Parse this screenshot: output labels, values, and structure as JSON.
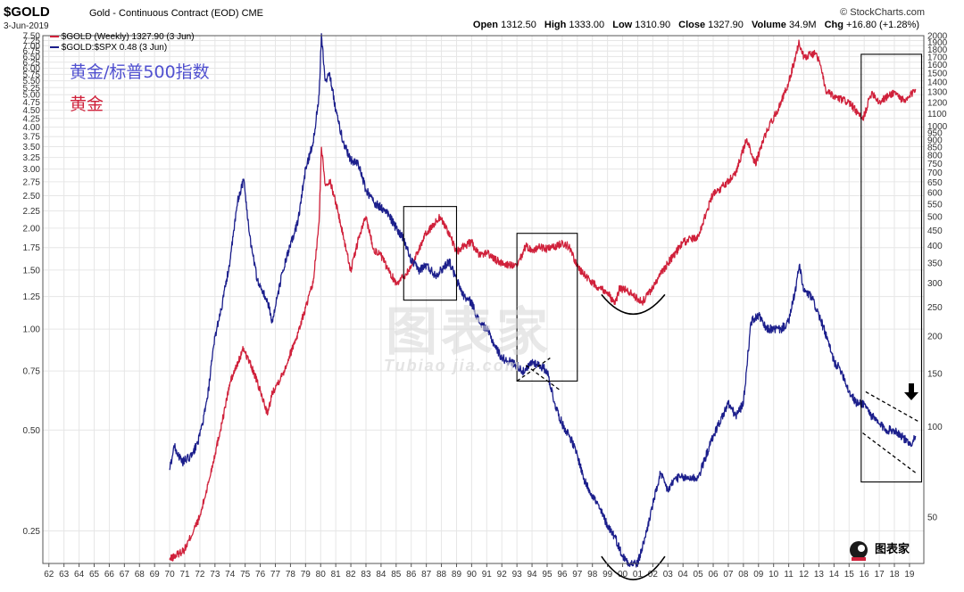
{
  "header": {
    "symbol": "$GOLD",
    "description": "Gold - Continuous Contract (EOD)",
    "exchange": "CME",
    "date": "3-Jun-2019",
    "credit": "© StockCharts.com",
    "ohlc": [
      {
        "label": "Open",
        "value": "1312.50"
      },
      {
        "label": "High",
        "value": "1333.00"
      },
      {
        "label": "Low",
        "value": "1310.90"
      },
      {
        "label": "Close",
        "value": "1327.90"
      },
      {
        "label": "Volume",
        "value": "34.9M"
      },
      {
        "label": "Chg",
        "value": "+16.80 (+1.28%)"
      }
    ]
  },
  "legend": {
    "gold": "$GOLD (Weekly) 1327.90 (3 Jun)",
    "ratio": "$GOLD:$SPX 0.48 (3 Jun)"
  },
  "annotations": {
    "ratio_label": "黄金/标普500指数",
    "gold_label": "黄金"
  },
  "watermark": {
    "cn": "图表家",
    "en": "Tubiao jia.com"
  },
  "logo_text": "图表家",
  "colors": {
    "gold": "#d0213b",
    "ratio": "#1c1f8c",
    "grid": "#e6e6e6",
    "annotation_ratio": "#5050d0",
    "annotation_gold": "#d0213b"
  },
  "chart_data": {
    "type": "line",
    "x_ticks": [
      "62",
      "63",
      "64",
      "65",
      "66",
      "67",
      "68",
      "69",
      "70",
      "71",
      "72",
      "73",
      "74",
      "75",
      "76",
      "77",
      "78",
      "79",
      "80",
      "81",
      "82",
      "83",
      "84",
      "85",
      "86",
      "87",
      "88",
      "89",
      "90",
      "91",
      "92",
      "93",
      "94",
      "95",
      "96",
      "97",
      "98",
      "99",
      "00",
      "01",
      "02",
      "03",
      "04",
      "05",
      "06",
      "07",
      "08",
      "09",
      "10",
      "11",
      "12",
      "13",
      "14",
      "15",
      "16",
      "17",
      "18",
      "19"
    ],
    "y_left": {
      "scale": "log",
      "range": [
        0.2,
        7.5
      ],
      "ticks": [
        "7.50",
        "7.25",
        "7.00",
        "6.75",
        "6.50",
        "6.25",
        "6.00",
        "5.75",
        "5.50",
        "5.25",
        "5.00",
        "4.75",
        "4.50",
        "4.25",
        "4.00",
        "3.75",
        "3.50",
        "3.25",
        "3.00",
        "2.75",
        "2.50",
        "2.25",
        "2.00",
        "1.75",
        "1.50",
        "1.25",
        "1.00",
        "0.75",
        "0.50",
        "0.25"
      ]
    },
    "y_right": {
      "scale": "log",
      "range": [
        35,
        2000
      ],
      "ticks": [
        "2000",
        "1900",
        "1800",
        "1700",
        "1600",
        "1500",
        "1400",
        "1300",
        "1200",
        "1100",
        "1000",
        "950",
        "900",
        "850",
        "800",
        "750",
        "700",
        "650",
        "600",
        "550",
        "500",
        "450",
        "400",
        "350",
        "300",
        "250",
        "200",
        "150",
        "100",
        "50"
      ]
    },
    "series": [
      {
        "name": "$GOLD (Weekly) 1327.90 (3 Jun)",
        "axis": "right",
        "color": "#d0213b",
        "x": [
          1970.0,
          1971.0,
          1972.0,
          1972.6,
          1973.5,
          1974.0,
          1974.9,
          1975.6,
          1976.5,
          1976.8,
          1977.5,
          1978.5,
          1979.5,
          1979.9,
          1980.05,
          1980.3,
          1980.6,
          1981.0,
          1981.5,
          1982.0,
          1982.5,
          1983.0,
          1983.5,
          1984.0,
          1984.5,
          1985.0,
          1985.6,
          1986.0,
          1986.5,
          1987.0,
          1987.5,
          1987.9,
          1988.5,
          1989.0,
          1989.5,
          1990.0,
          1990.5,
          1991.0,
          1991.5,
          1992.0,
          1992.5,
          1993.0,
          1993.6,
          1994.0,
          1994.5,
          1995.0,
          1995.5,
          1996.0,
          1996.5,
          1997.0,
          1997.5,
          1998.0,
          1998.5,
          1999.0,
          1999.5,
          1999.8,
          2000.5,
          2001.0,
          2001.3,
          2001.8,
          2002.5,
          2003.0,
          2004.0,
          2005.0,
          2006.0,
          2006.5,
          2007.5,
          2008.2,
          2008.8,
          2009.5,
          2010.5,
          2011.0,
          2011.7,
          2012.0,
          2012.8,
          2013.0,
          2013.5,
          2014.0,
          2015.0,
          2015.9,
          2016.5,
          2017.0,
          2018.0,
          2018.7,
          2019.2,
          2019.4
        ],
        "values": [
          36,
          39,
          50,
          66,
          105,
          140,
          182,
          150,
          110,
          130,
          150,
          205,
          300,
          480,
          850,
          640,
          660,
          560,
          430,
          330,
          420,
          500,
          390,
          370,
          330,
          300,
          320,
          340,
          390,
          440,
          470,
          500,
          440,
          380,
          400,
          410,
          370,
          380,
          360,
          350,
          345,
          340,
          400,
          385,
          395,
          390,
          395,
          410,
          395,
          340,
          320,
          300,
          290,
          280,
          255,
          290,
          280,
          265,
          260,
          280,
          320,
          350,
          410,
          430,
          600,
          620,
          700,
          900,
          750,
          950,
          1200,
          1400,
          1900,
          1700,
          1750,
          1650,
          1300,
          1250,
          1200,
          1050,
          1300,
          1200,
          1300,
          1200,
          1290,
          1327.9
        ]
      },
      {
        "name": "$GOLD:$SPX 0.48 (3 Jun)",
        "axis": "left",
        "color": "#1c1f8c",
        "x": [
          1970.0,
          1970.3,
          1970.8,
          1971.5,
          1972.0,
          1972.5,
          1973.0,
          1973.5,
          1974.0,
          1974.5,
          1974.9,
          1975.3,
          1975.8,
          1976.5,
          1976.8,
          1977.5,
          1978.5,
          1979.0,
          1979.5,
          1979.9,
          1980.05,
          1980.3,
          1980.6,
          1981.0,
          1981.5,
          1982.0,
          1982.5,
          1983.0,
          1983.5,
          1984.0,
          1984.5,
          1985.0,
          1985.5,
          1986.0,
          1986.5,
          1987.0,
          1987.6,
          1988.0,
          1988.5,
          1989.0,
          1989.5,
          1990.0,
          1990.5,
          1991.0,
          1991.5,
          1992.0,
          1992.5,
          1993.0,
          1993.5,
          1994.0,
          1994.5,
          1995.0,
          1995.5,
          1996.0,
          1996.5,
          1997.0,
          1997.5,
          1998.0,
          1998.5,
          1999.0,
          1999.5,
          2000.0,
          2000.5,
          2001.0,
          2001.5,
          2002.0,
          2002.5,
          2003.0,
          2003.5,
          2004.0,
          2005.0,
          2006.0,
          2007.0,
          2007.5,
          2008.0,
          2008.5,
          2009.0,
          2009.5,
          2010.0,
          2010.5,
          2011.0,
          2011.5,
          2011.7,
          2012.0,
          2012.5,
          2013.0,
          2013.5,
          2014.0,
          2014.5,
          2015.0,
          2015.5,
          2016.0,
          2016.5,
          2017.0,
          2017.5,
          2018.0,
          2018.5,
          2019.0,
          2019.4
        ],
        "values": [
          0.38,
          0.45,
          0.4,
          0.42,
          0.48,
          0.62,
          0.95,
          1.2,
          1.6,
          2.4,
          2.8,
          1.9,
          1.4,
          1.2,
          1.05,
          1.5,
          2.1,
          3.0,
          3.6,
          5.0,
          7.6,
          5.5,
          5.8,
          4.5,
          3.6,
          3.2,
          3.1,
          2.6,
          2.4,
          2.3,
          2.2,
          2.0,
          1.85,
          1.6,
          1.5,
          1.55,
          1.45,
          1.5,
          1.6,
          1.4,
          1.25,
          1.2,
          1.05,
          1.0,
          0.9,
          0.82,
          0.8,
          0.78,
          0.74,
          0.8,
          0.78,
          0.75,
          0.6,
          0.52,
          0.48,
          0.42,
          0.35,
          0.32,
          0.29,
          0.26,
          0.24,
          0.21,
          0.2,
          0.2,
          0.24,
          0.3,
          0.37,
          0.33,
          0.36,
          0.36,
          0.36,
          0.48,
          0.6,
          0.55,
          0.6,
          1.05,
          1.1,
          1.0,
          1.0,
          1.0,
          1.05,
          1.35,
          1.55,
          1.3,
          1.25,
          1.1,
          0.95,
          0.8,
          0.75,
          0.65,
          0.6,
          0.6,
          0.55,
          0.52,
          0.5,
          0.5,
          0.48,
          0.45,
          0.48
        ]
      }
    ],
    "grid": true,
    "legend_position": "top-left",
    "overlays": [
      {
        "shape": "box",
        "x": [
          1985.5,
          1989.0
        ],
        "axis": "left",
        "y": [
          1.22,
          2.32
        ]
      },
      {
        "shape": "box",
        "x": [
          1993.0,
          1997.0
        ],
        "axis": "left",
        "y": [
          0.7,
          1.93
        ]
      },
      {
        "shape": "box",
        "x": [
          2015.8,
          2019.8
        ],
        "axis": "left",
        "y": [
          0.35,
          6.6
        ]
      },
      {
        "shape": "dashed",
        "axis": "left",
        "x": [
          1993.0,
          1995.2
        ],
        "y": [
          0.7,
          0.82
        ]
      },
      {
        "shape": "dashed",
        "axis": "left",
        "x": [
          1993.6,
          1995.8
        ],
        "y": [
          0.78,
          0.66
        ]
      },
      {
        "shape": "dashed",
        "axis": "left",
        "x": [
          2016.1,
          2019.6
        ],
        "y": [
          0.65,
          0.53
        ]
      },
      {
        "shape": "dashed",
        "axis": "left",
        "x": [
          2015.9,
          2019.5
        ],
        "y": [
          0.49,
          0.37
        ]
      },
      {
        "shape": "arc",
        "axis": "right",
        "x": [
          1998.6,
          2002.8
        ],
        "y": [
          275,
          275
        ],
        "depth": 22
      },
      {
        "shape": "arc",
        "axis": "left",
        "x": [
          1998.6,
          2002.8
        ],
        "y": [
          0.21,
          0.21
        ],
        "depth": 26
      }
    ]
  }
}
